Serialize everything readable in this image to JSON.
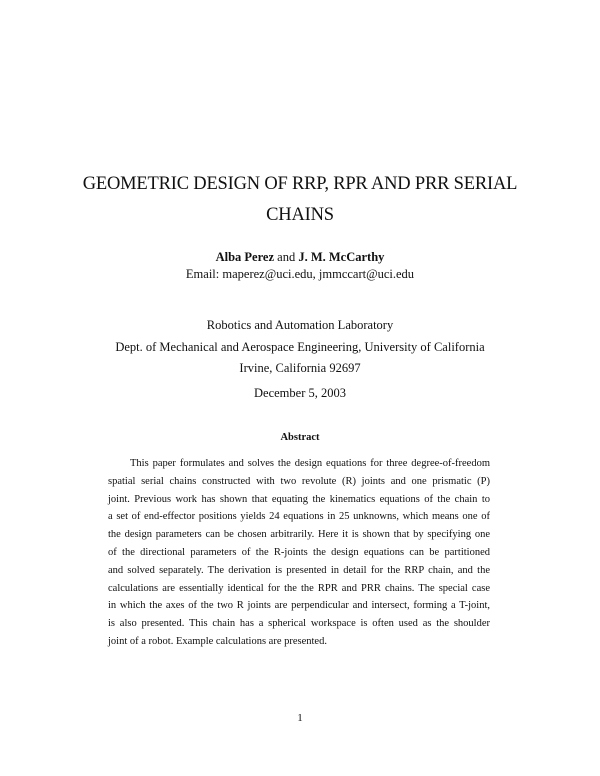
{
  "title": {
    "line1": "GEOMETRIC DESIGN OF RRP, RPR AND PRR SERIAL",
    "line2": "CHAINS"
  },
  "authors": {
    "author1": "Alba Perez",
    "conjunction": "and",
    "author2": "J. M. McCarthy"
  },
  "email": "Email: maperez@uci.edu, jmmccart@uci.edu",
  "affiliation": {
    "lab": "Robotics and Automation Laboratory",
    "dept": "Dept. of Mechanical and Aerospace Engineering, University of California",
    "city": "Irvine, California 92697"
  },
  "date": "December 5, 2003",
  "abstract": {
    "heading": "Abstract",
    "lines": [
      "This paper formulates and solves the design equations for three degree-of-freedom",
      "spatial serial chains constructed with two revolute (R) joints and one prismatic (P)",
      "joint. Previous work has shown that equating the kinematics equations of the chain to",
      "a set of end-effector positions yields 24 equations in 25 unknowns, which means one of",
      "the design parameters can be chosen arbitrarily. Here it is shown that by specifying one",
      "of the directional parameters of the R-joints the design equations can be partitioned",
      "and solved separately. The derivation is presented in detail for the RRP chain, and the",
      "calculations are essentially identical for the the RPR and PRR chains. The special case",
      "in which the axes of the two R joints are perpendicular and intersect, forming a T-joint,",
      "is also presented. This chain has a spherical workspace is often used as the shoulder",
      "joint of a robot. Example calculations are presented."
    ]
  },
  "page_number": "1"
}
